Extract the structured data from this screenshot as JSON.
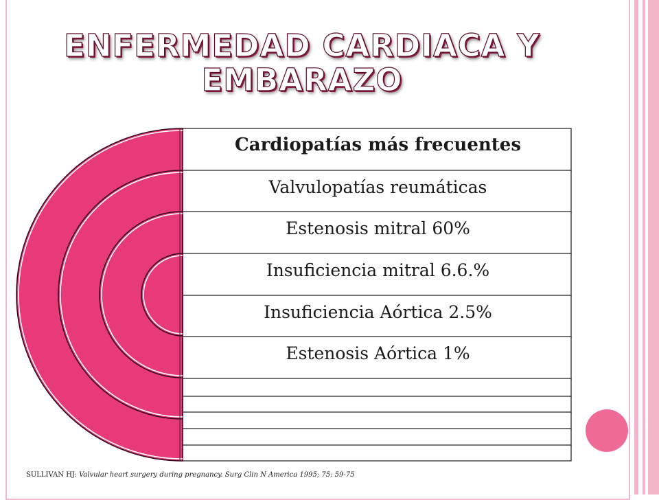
{
  "slide": {
    "title_line1": "Enfermedad cardiaca y",
    "title_line2": "embarazo",
    "accent_color": "#f0407e",
    "frame_color": "#f2b8cc"
  },
  "diagram": {
    "header": "Cardiopatías más frecuentes",
    "items": [
      "Valvulopatías reumáticas",
      "Estenosis mitral 60%",
      "Insuficiencia mitral 6.6.%",
      "Insuficiencia Aórtica 2.5%",
      "Estenosis Aórtica 1%"
    ]
  },
  "citation": {
    "author": "SULLIVAN HJ: ",
    "title": "Valvular heart surgery during pregnancy. Surg Clin N America 1995; 75: 59-75"
  }
}
